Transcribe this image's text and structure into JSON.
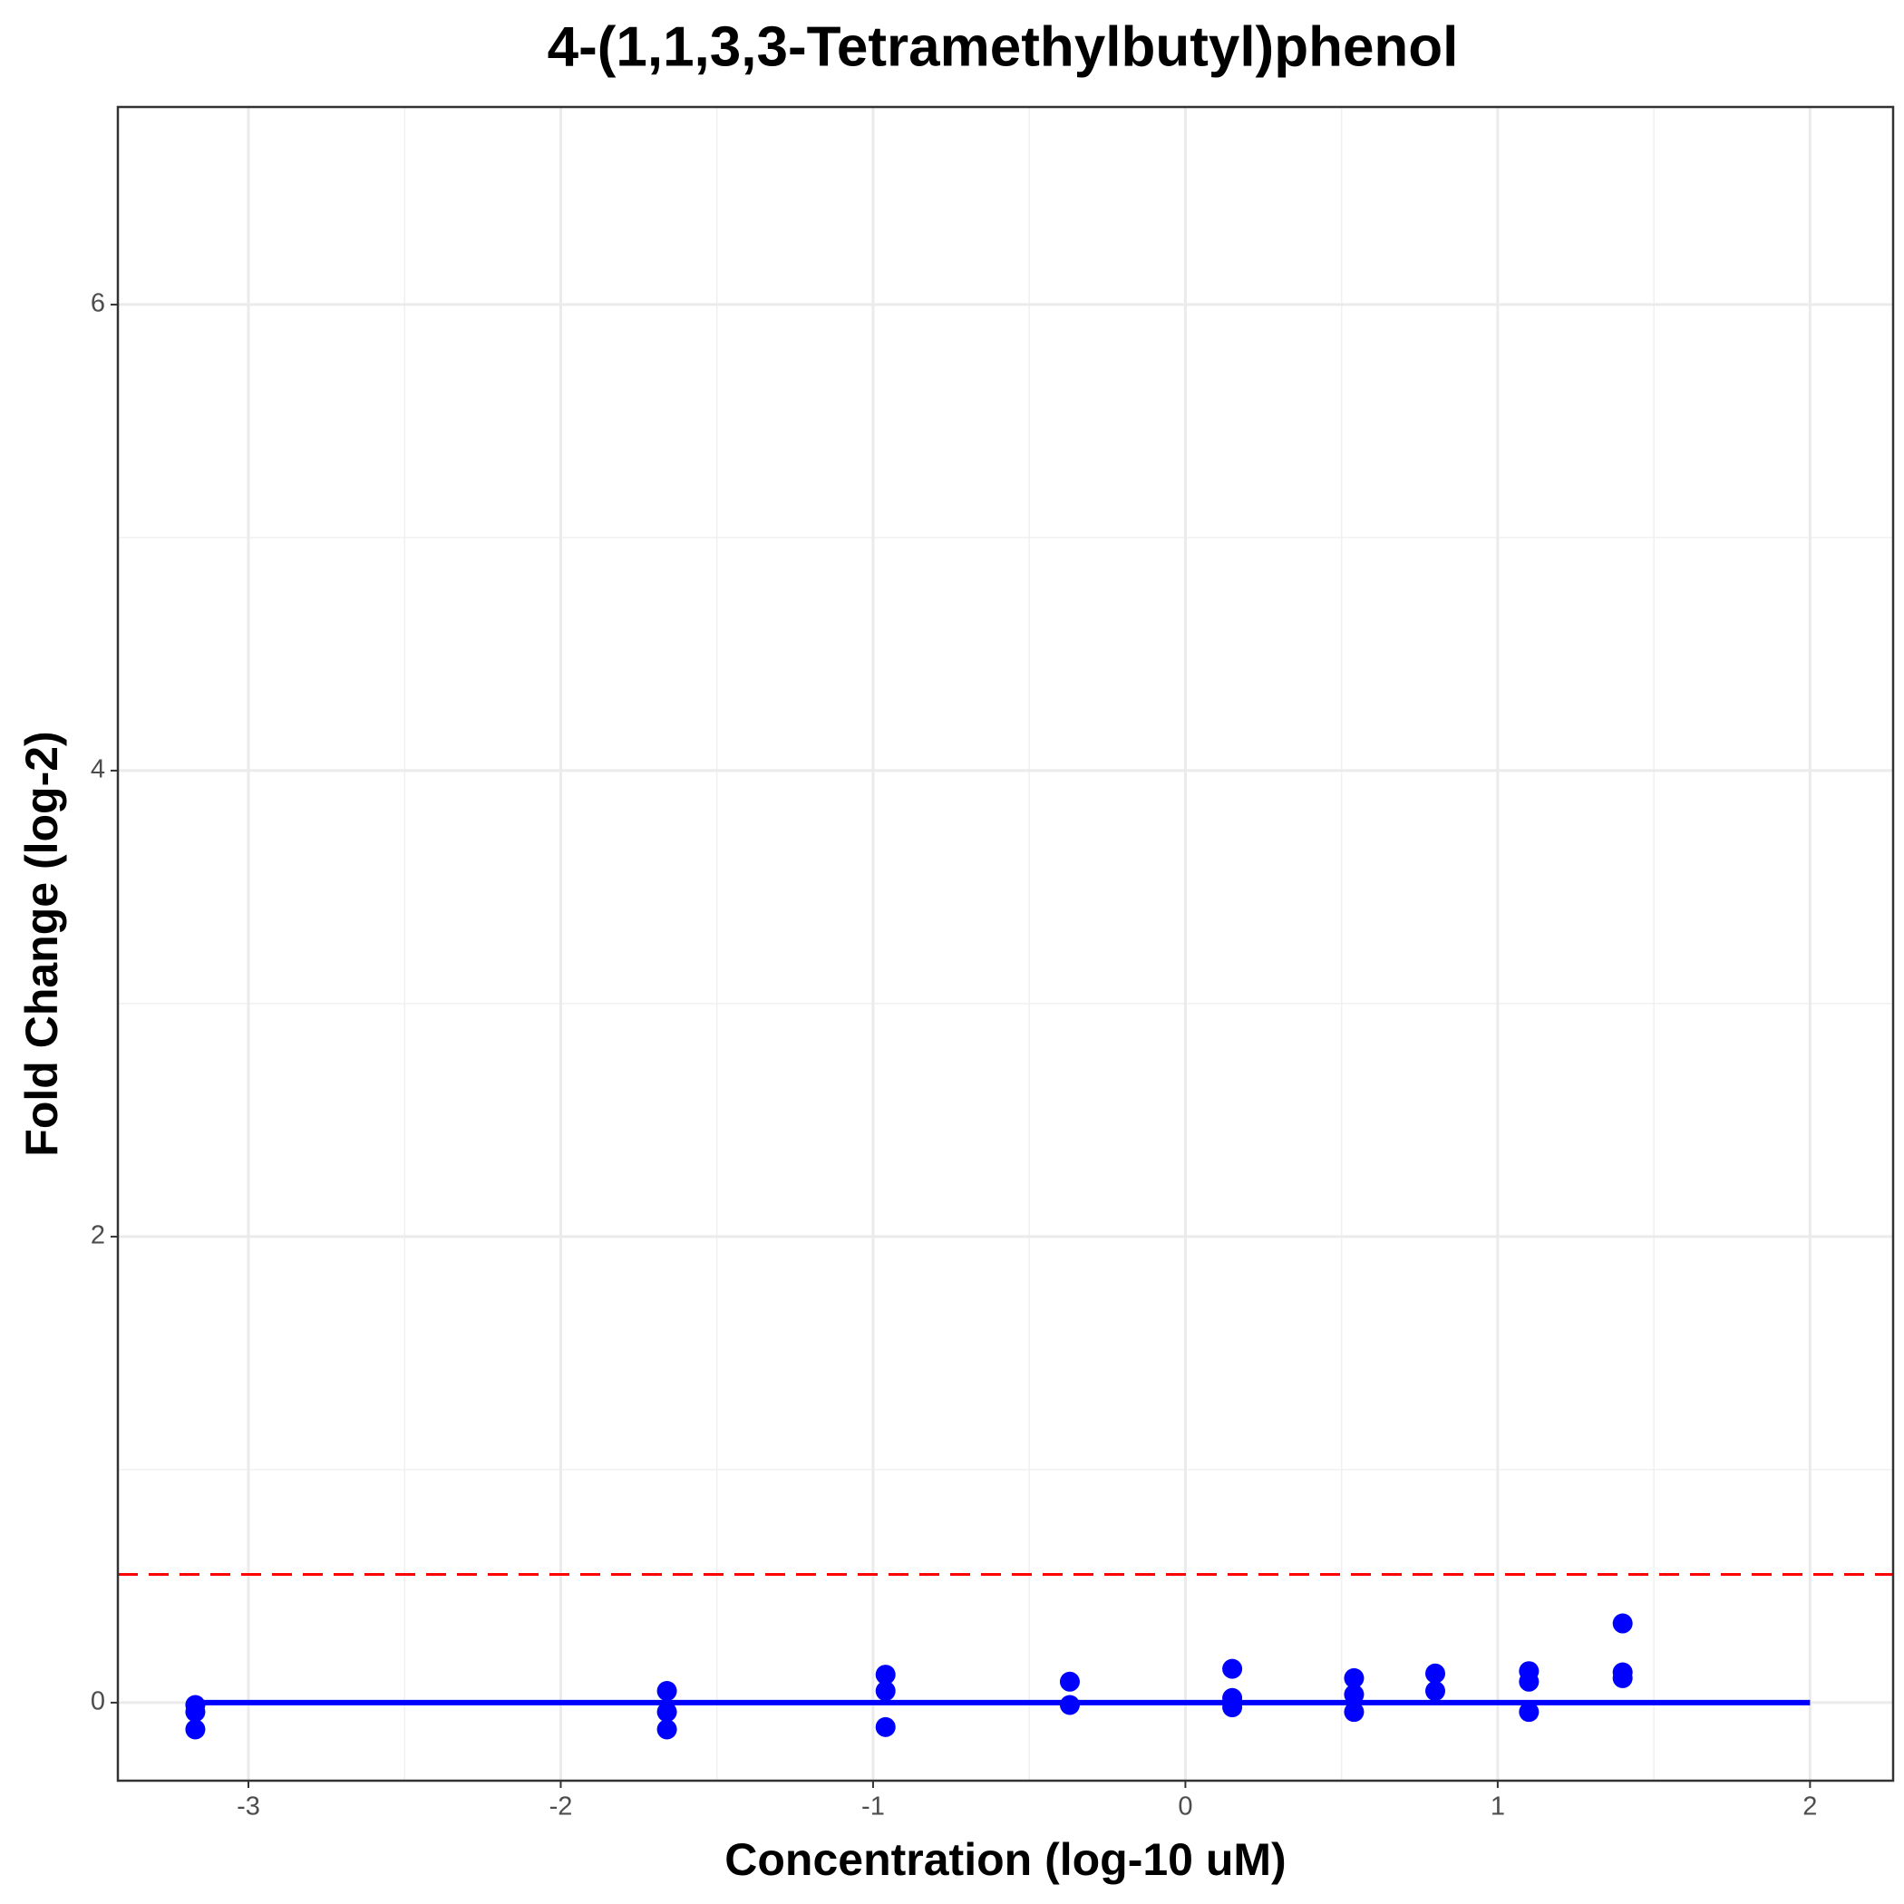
{
  "chart_data": {
    "type": "scatter",
    "title": "4-(1,1,3,3-Tetramethylbutyl)phenol",
    "x_label": "Concentration (log-10 uM)",
    "y_label": "Fold Change (log-2)",
    "x": [
      -3.17,
      -3.17,
      -3.17,
      -1.66,
      -1.66,
      -1.66,
      -0.96,
      -0.96,
      -0.96,
      -0.37,
      -0.37,
      0.15,
      0.15,
      0.15,
      0.54,
      0.54,
      0.54,
      0.8,
      0.8,
      1.1,
      1.1,
      1.1,
      1.4,
      1.4,
      1.4
    ],
    "values": [
      -0.01,
      -0.04,
      -0.115,
      0.05,
      -0.04,
      -0.115,
      0.12,
      0.05,
      -0.105,
      0.09,
      -0.01,
      0.145,
      0.02,
      -0.02,
      0.105,
      0.035,
      -0.04,
      0.125,
      0.05,
      0.135,
      0.09,
      -0.04,
      0.34,
      0.13,
      0.105
    ],
    "color": "#0000ff",
    "fit": {
      "x": [
        -3.17,
        2
      ],
      "values": [
        0,
        0
      ],
      "color": "#0000ff"
    },
    "threshold": {
      "value": 0.55,
      "color": "#ff0000"
    },
    "xlim": [
      -3.418,
      2.266
    ],
    "ylim": [
      -0.335,
      6.848
    ],
    "xticks": [
      -3,
      -2,
      -1,
      0,
      1,
      2
    ],
    "yticks": [
      0,
      2,
      4,
      6
    ],
    "grid": true
  }
}
